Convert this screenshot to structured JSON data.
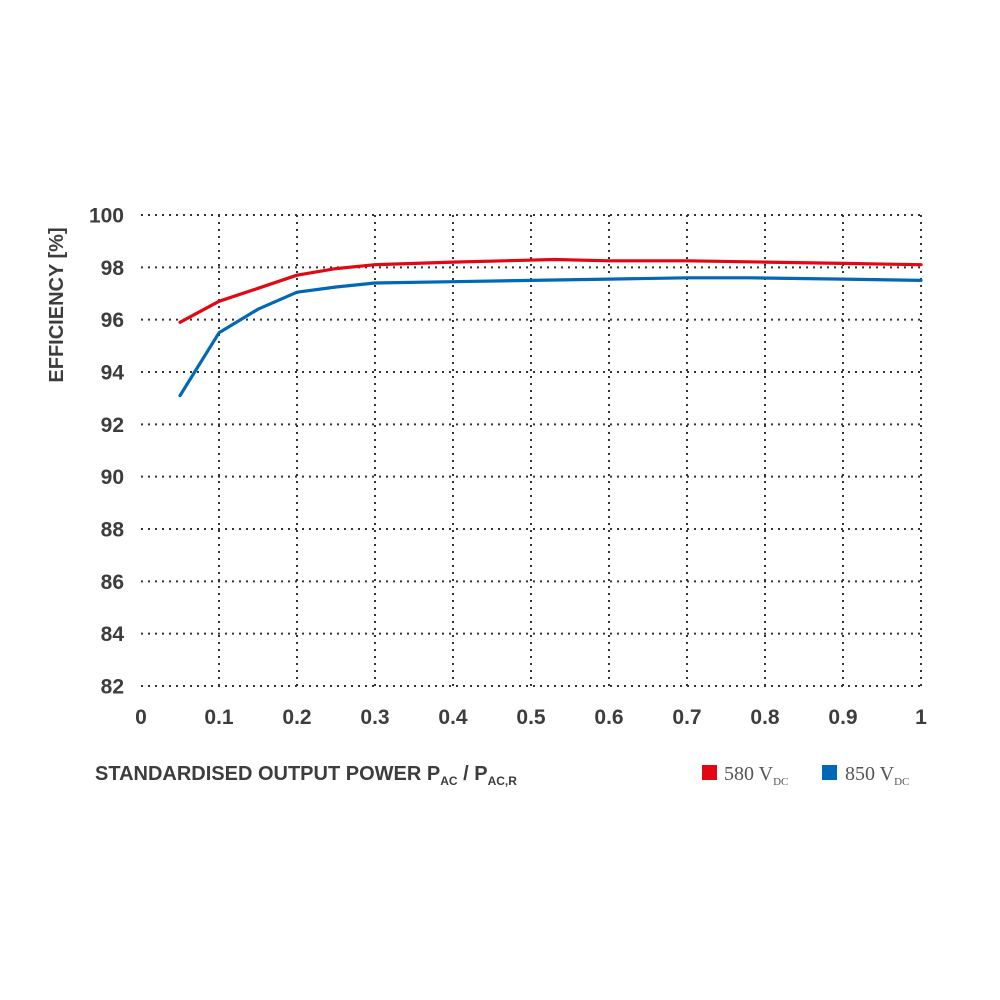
{
  "chart_data": {
    "type": "line",
    "title": "",
    "ylabel": "EFFICIENCY [%]",
    "xlabel": {
      "main": "STANDARDISED OUTPUT POWER P",
      "sub1": "AC",
      "sep": " / P",
      "sub2": "AC,R"
    },
    "xlim": [
      0,
      1
    ],
    "ylim": [
      82,
      100
    ],
    "xticks": [
      "0",
      "0.1",
      "0.2",
      "0.3",
      "0.4",
      "0.5",
      "0.6",
      "0.7",
      "0.8",
      "0.9",
      "1"
    ],
    "yticks": [
      "82",
      "84",
      "86",
      "88",
      "90",
      "92",
      "94",
      "96",
      "98",
      "100"
    ],
    "grid": true,
    "legend_position": "bottom-right",
    "series": [
      {
        "name": "580 V",
        "name_sub": "DC",
        "color": "#e30613",
        "x": [
          0.05,
          0.1,
          0.15,
          0.2,
          0.25,
          0.3,
          0.4,
          0.53,
          0.6,
          0.7,
          0.8,
          0.9,
          1.0
        ],
        "y": [
          95.9,
          96.7,
          97.2,
          97.7,
          97.95,
          98.1,
          98.2,
          98.3,
          98.25,
          98.25,
          98.2,
          98.15,
          98.1
        ]
      },
      {
        "name": "850 V",
        "name_sub": "DC",
        "color": "#0068b4",
        "x": [
          0.05,
          0.1,
          0.15,
          0.2,
          0.25,
          0.3,
          0.4,
          0.5,
          0.6,
          0.7,
          0.78,
          0.9,
          1.0
        ],
        "y": [
          93.1,
          95.5,
          96.4,
          97.05,
          97.25,
          97.4,
          97.45,
          97.5,
          97.55,
          97.6,
          97.6,
          97.55,
          97.5
        ]
      }
    ]
  }
}
